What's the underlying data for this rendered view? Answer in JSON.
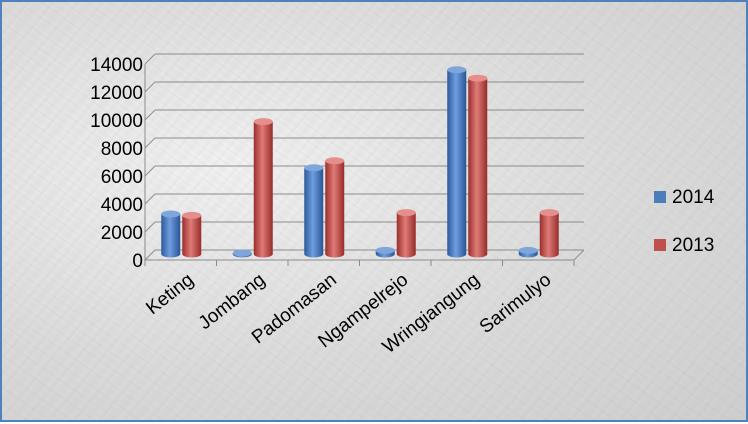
{
  "chart_data": {
    "type": "bar",
    "categories": [
      "Keting",
      "Jombang",
      "Padomasan",
      "Ngampelrejo",
      "Wringiangung",
      "Sarimulyo"
    ],
    "series": [
      {
        "name": "2014",
        "values": [
          3000,
          200,
          6300,
          400,
          13300,
          400
        ]
      },
      {
        "name": "2013",
        "values": [
          2900,
          9600,
          6800,
          3100,
          12700,
          3100
        ]
      }
    ],
    "ylim": [
      0,
      14000
    ],
    "yticks": [
      0,
      2000,
      4000,
      6000,
      8000,
      10000,
      12000,
      14000
    ],
    "grid": true,
    "legend_position": "right",
    "colors": {
      "2014": "#4a7ebb",
      "2013": "#c0504d",
      "frame": "#4f81bd"
    }
  }
}
